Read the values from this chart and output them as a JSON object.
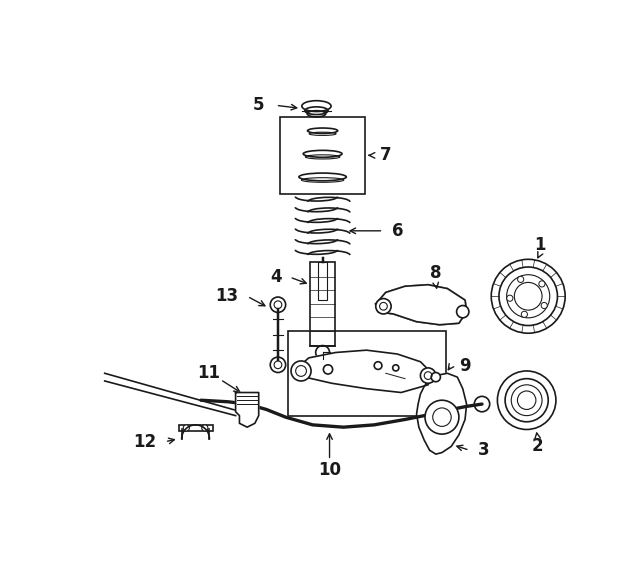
{
  "bg_color": "#ffffff",
  "line_color": "#1a1a1a",
  "figsize": [
    6.4,
    5.76
  ],
  "dpi": 100
}
